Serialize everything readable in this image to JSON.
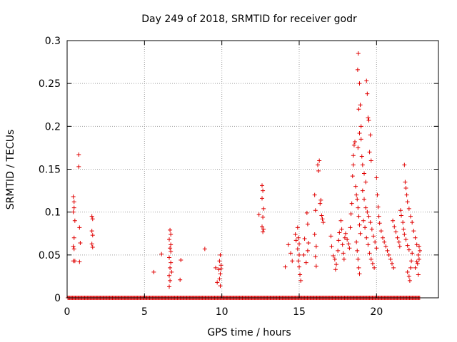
{
  "chart_data": {
    "type": "scatter",
    "title": "Day 249 of 2018, SRMTID for receiver godr",
    "xlabel": "GPS time / hours",
    "ylabel": "SRMTID / TECUs",
    "xlim": [
      0,
      24
    ],
    "ylim": [
      0,
      0.3
    ],
    "xticks": [
      0,
      5,
      10,
      15,
      20
    ],
    "yticks": [
      0,
      0.05,
      0.1,
      0.15,
      0.2,
      0.25,
      0.3
    ],
    "xtick_labels": [
      "0",
      "5",
      "10",
      "15",
      "20"
    ],
    "ytick_labels": [
      "0",
      "0.05",
      "0.1",
      "0.15",
      "0.2",
      "0.25",
      "0.3"
    ],
    "grid": true,
    "marker": "+",
    "color": "#e00000",
    "baseline_zero_range": [
      0.05,
      22.8
    ],
    "series": [
      {
        "name": "godr",
        "points": [
          [
            0.4,
            0.118
          ],
          [
            0.45,
            0.112
          ],
          [
            0.45,
            0.105
          ],
          [
            0.4,
            0.1
          ],
          [
            0.5,
            0.09
          ],
          [
            0.45,
            0.07
          ],
          [
            0.4,
            0.06
          ],
          [
            0.45,
            0.057
          ],
          [
            0.4,
            0.043
          ],
          [
            0.5,
            0.043
          ],
          [
            0.75,
            0.167
          ],
          [
            0.75,
            0.153
          ],
          [
            0.8,
            0.082
          ],
          [
            0.85,
            0.064
          ],
          [
            0.8,
            0.042
          ],
          [
            1.6,
            0.095
          ],
          [
            1.65,
            0.092
          ],
          [
            1.6,
            0.078
          ],
          [
            1.65,
            0.073
          ],
          [
            1.6,
            0.063
          ],
          [
            1.65,
            0.059
          ],
          [
            5.6,
            0.03
          ],
          [
            6.1,
            0.051
          ],
          [
            6.65,
            0.079
          ],
          [
            6.7,
            0.074
          ],
          [
            6.6,
            0.068
          ],
          [
            6.7,
            0.062
          ],
          [
            6.65,
            0.058
          ],
          [
            6.7,
            0.054
          ],
          [
            6.6,
            0.047
          ],
          [
            6.7,
            0.041
          ],
          [
            6.65,
            0.035
          ],
          [
            6.75,
            0.03
          ],
          [
            6.6,
            0.026
          ],
          [
            6.65,
            0.02
          ],
          [
            6.6,
            0.013
          ],
          [
            7.3,
            0.021
          ],
          [
            7.35,
            0.044
          ],
          [
            8.9,
            0.057
          ],
          [
            9.6,
            0.035
          ],
          [
            9.7,
            0.018
          ],
          [
            9.9,
            0.05
          ],
          [
            9.85,
            0.043
          ],
          [
            9.95,
            0.038
          ],
          [
            9.8,
            0.033
          ],
          [
            9.9,
            0.028
          ],
          [
            9.85,
            0.022
          ],
          [
            9.9,
            0.014
          ],
          [
            9.95,
            0.034
          ],
          [
            12.4,
            0.097
          ],
          [
            12.6,
            0.131
          ],
          [
            12.65,
            0.125
          ],
          [
            12.6,
            0.116
          ],
          [
            12.7,
            0.104
          ],
          [
            12.65,
            0.094
          ],
          [
            12.6,
            0.083
          ],
          [
            12.7,
            0.08
          ],
          [
            12.65,
            0.077
          ],
          [
            14.1,
            0.036
          ],
          [
            14.3,
            0.062
          ],
          [
            14.45,
            0.052
          ],
          [
            14.55,
            0.043
          ],
          [
            14.75,
            0.074
          ],
          [
            14.8,
            0.067
          ],
          [
            14.9,
            0.082
          ],
          [
            14.95,
            0.07
          ],
          [
            15.0,
            0.063
          ],
          [
            14.9,
            0.057
          ],
          [
            15.0,
            0.05
          ],
          [
            14.95,
            0.043
          ],
          [
            15.0,
            0.036
          ],
          [
            15.05,
            0.027
          ],
          [
            15.1,
            0.02
          ],
          [
            15.3,
            0.05
          ],
          [
            15.35,
            0.069
          ],
          [
            15.5,
            0.099
          ],
          [
            15.55,
            0.086
          ],
          [
            15.45,
            0.041
          ],
          [
            15.55,
            0.055
          ],
          [
            15.6,
            0.064
          ],
          [
            16.0,
            0.12
          ],
          [
            16.05,
            0.102
          ],
          [
            16.0,
            0.074
          ],
          [
            16.1,
            0.06
          ],
          [
            16.05,
            0.048
          ],
          [
            16.1,
            0.037
          ],
          [
            16.2,
            0.155
          ],
          [
            16.25,
            0.148
          ],
          [
            16.3,
            0.16
          ],
          [
            16.35,
            0.11
          ],
          [
            16.4,
            0.114
          ],
          [
            16.45,
            0.096
          ],
          [
            16.5,
            0.092
          ],
          [
            16.55,
            0.088
          ],
          [
            17.05,
            0.072
          ],
          [
            17.1,
            0.06
          ],
          [
            17.2,
            0.049
          ],
          [
            17.3,
            0.045
          ],
          [
            17.35,
            0.033
          ],
          [
            17.4,
            0.039
          ],
          [
            17.5,
            0.055
          ],
          [
            17.55,
            0.067
          ],
          [
            17.6,
            0.076
          ],
          [
            17.7,
            0.09
          ],
          [
            17.75,
            0.08
          ],
          [
            17.8,
            0.062
          ],
          [
            17.85,
            0.052
          ],
          [
            17.9,
            0.045
          ],
          [
            17.95,
            0.07
          ],
          [
            18.0,
            0.075
          ],
          [
            18.1,
            0.068
          ],
          [
            18.2,
            0.063
          ],
          [
            18.25,
            0.058
          ],
          [
            18.3,
            0.082
          ],
          [
            18.35,
            0.098
          ],
          [
            18.4,
            0.11
          ],
          [
            18.45,
            0.142
          ],
          [
            18.5,
            0.155
          ],
          [
            18.5,
            0.166
          ],
          [
            18.55,
            0.178
          ],
          [
            18.6,
            0.182
          ],
          [
            18.65,
            0.13
          ],
          [
            18.7,
            0.12
          ],
          [
            18.75,
            0.115
          ],
          [
            18.8,
            0.105
          ],
          [
            18.85,
            0.095
          ],
          [
            18.9,
            0.085
          ],
          [
            18.95,
            0.075
          ],
          [
            18.7,
            0.065
          ],
          [
            18.75,
            0.055
          ],
          [
            18.8,
            0.045
          ],
          [
            18.85,
            0.035
          ],
          [
            18.9,
            0.028
          ],
          [
            18.78,
            0.266
          ],
          [
            18.82,
            0.285
          ],
          [
            18.9,
            0.25
          ],
          [
            18.95,
            0.225
          ],
          [
            18.85,
            0.22
          ],
          [
            19.0,
            0.2
          ],
          [
            18.9,
            0.192
          ],
          [
            18.8,
            0.175
          ],
          [
            19.0,
            0.185
          ],
          [
            19.05,
            0.165
          ],
          [
            19.1,
            0.155
          ],
          [
            19.2,
            0.145
          ],
          [
            19.3,
            0.135
          ],
          [
            19.35,
            0.253
          ],
          [
            19.4,
            0.238
          ],
          [
            19.45,
            0.21
          ],
          [
            19.5,
            0.207
          ],
          [
            19.6,
            0.19
          ],
          [
            19.55,
            0.17
          ],
          [
            19.65,
            0.16
          ],
          [
            19.1,
            0.125
          ],
          [
            19.2,
            0.115
          ],
          [
            19.3,
            0.105
          ],
          [
            19.4,
            0.1
          ],
          [
            19.5,
            0.095
          ],
          [
            19.6,
            0.088
          ],
          [
            19.7,
            0.08
          ],
          [
            19.8,
            0.072
          ],
          [
            19.9,
            0.065
          ],
          [
            20.0,
            0.058
          ],
          [
            19.15,
            0.09
          ],
          [
            19.25,
            0.082
          ],
          [
            19.35,
            0.07
          ],
          [
            19.45,
            0.062
          ],
          [
            19.55,
            0.052
          ],
          [
            19.65,
            0.045
          ],
          [
            19.75,
            0.04
          ],
          [
            19.85,
            0.035
          ],
          [
            20.0,
            0.14
          ],
          [
            20.05,
            0.12
          ],
          [
            20.1,
            0.106
          ],
          [
            20.15,
            0.095
          ],
          [
            20.2,
            0.087
          ],
          [
            20.3,
            0.078
          ],
          [
            20.4,
            0.07
          ],
          [
            20.5,
            0.065
          ],
          [
            20.6,
            0.06
          ],
          [
            20.7,
            0.055
          ],
          [
            20.8,
            0.05
          ],
          [
            20.9,
            0.045
          ],
          [
            21.0,
            0.04
          ],
          [
            21.1,
            0.035
          ],
          [
            21.05,
            0.09
          ],
          [
            21.15,
            0.083
          ],
          [
            21.25,
            0.077
          ],
          [
            21.35,
            0.07
          ],
          [
            21.45,
            0.065
          ],
          [
            21.5,
            0.06
          ],
          [
            21.55,
            0.102
          ],
          [
            21.6,
            0.096
          ],
          [
            21.7,
            0.088
          ],
          [
            21.75,
            0.08
          ],
          [
            21.8,
            0.074
          ],
          [
            21.9,
            0.068
          ],
          [
            22.0,
            0.061
          ],
          [
            22.1,
            0.056
          ],
          [
            21.8,
            0.155
          ],
          [
            21.85,
            0.135
          ],
          [
            21.9,
            0.128
          ],
          [
            21.95,
            0.12
          ],
          [
            22.0,
            0.112
          ],
          [
            22.1,
            0.104
          ],
          [
            22.2,
            0.095
          ],
          [
            22.3,
            0.088
          ],
          [
            22.4,
            0.078
          ],
          [
            22.5,
            0.07
          ],
          [
            22.6,
            0.062
          ],
          [
            22.7,
            0.05
          ],
          [
            22.75,
            0.045
          ],
          [
            22.65,
            0.04
          ],
          [
            22.0,
            0.03
          ],
          [
            22.1,
            0.025
          ],
          [
            22.15,
            0.02
          ],
          [
            22.2,
            0.035
          ],
          [
            22.25,
            0.043
          ],
          [
            22.3,
            0.052
          ],
          [
            22.5,
            0.035
          ],
          [
            22.6,
            0.042
          ],
          [
            22.7,
            0.027
          ],
          [
            22.75,
            0.06
          ],
          [
            22.8,
            0.055
          ]
        ]
      }
    ]
  }
}
